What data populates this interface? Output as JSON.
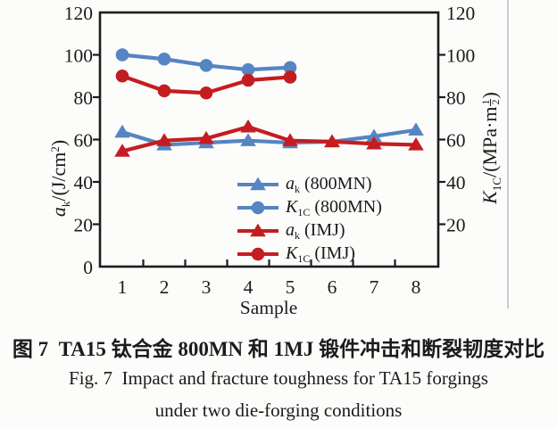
{
  "figure": {
    "caption_zh": "图 7  TA15 钛合金 800MN 和 1MJ 锻件冲击和断裂韧度对比",
    "caption_en_line1": "Fig. 7  Impact and fracture toughness for TA15 forgings",
    "caption_en_line2": "under two die-forging conditions"
  },
  "colors": {
    "blue": "#5585c2",
    "red": "#c41d21",
    "axis": "#1c1c1c",
    "divider": "#c9cccd"
  },
  "axis_labels": {
    "left": {
      "sym": "a",
      "sub": "k",
      "rest": "/(J/cm",
      "sup": "2",
      "close": ")"
    },
    "right": {
      "sym": "K",
      "sub": "1C",
      "rest": "/(MPa·m",
      "frac_num": "1",
      "frac_den": "2",
      "close": ")"
    }
  },
  "legend": {
    "items": [
      {
        "sym": "a",
        "sub": "k",
        "rest": " (800MN)",
        "marker": "triangle",
        "color": "#5585c2"
      },
      {
        "sym": "K",
        "sub": "1C",
        "rest": " (800MN)",
        "marker": "circle",
        "color": "#5585c2"
      },
      {
        "sym": "a",
        "sub": "k",
        "rest": " (IMJ)",
        "marker": "triangle",
        "color": "#c41d21"
      },
      {
        "sym": "K",
        "sub": "1C",
        "rest": " (IMJ)",
        "marker": "circle",
        "color": "#c41d21"
      }
    ]
  },
  "chart_data": {
    "type": "line",
    "title": "",
    "xlabel": "Sample",
    "ylabel_left": "a_k/(J/cm2)",
    "ylabel_right": "K_1C/(MPa·m^(1/2))",
    "x": [
      1,
      2,
      3,
      4,
      5,
      6,
      7,
      8
    ],
    "ylim": [
      0,
      120
    ],
    "yticks": [
      0,
      20,
      40,
      60,
      80,
      100,
      120
    ],
    "yticks_right": [
      20,
      40,
      60,
      80,
      100,
      120
    ],
    "grid": false,
    "legend_position": "inside lower right",
    "series": [
      {
        "name": "a_k (800MN)",
        "axis": "left",
        "marker": "triangle",
        "color": "#5585c2",
        "values": [
          63.5,
          57.5,
          58.5,
          59.5,
          58.5,
          59,
          61.5,
          64.5
        ]
      },
      {
        "name": "K_1C (800MN)",
        "axis": "right",
        "marker": "circle",
        "color": "#5585c2",
        "values": [
          100,
          98,
          95,
          93,
          94
        ]
      },
      {
        "name": "a_k (IMJ)",
        "axis": "left",
        "marker": "triangle",
        "color": "#c41d21",
        "values": [
          54.5,
          59.5,
          60.5,
          66,
          59.5,
          59,
          58,
          57.5
        ]
      },
      {
        "name": "K_1C (IMJ)",
        "axis": "right",
        "marker": "circle",
        "color": "#c41d21",
        "values": [
          90,
          83,
          82,
          88,
          89.5
        ]
      }
    ]
  }
}
